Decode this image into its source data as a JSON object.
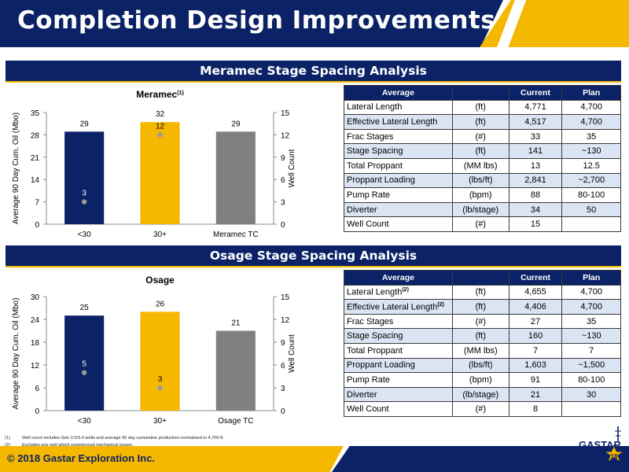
{
  "slide": {
    "title": "Completion Design Improvements",
    "copyright": "© 2018 Gastar Exploration Inc.",
    "logo_text": "GASTAR",
    "page_number": "18",
    "colors": {
      "navy": "#0b2266",
      "gold": "#f5b800",
      "gray": "#808080",
      "table_alt": "#dbe4f3"
    }
  },
  "sections": {
    "meramec_title": "Meramec Stage Spacing Analysis",
    "osage_title": "Osage Stage Spacing Analysis"
  },
  "chart_data": [
    {
      "type": "bar",
      "title": "Meramec",
      "title_sup": "(1)",
      "categories": [
        "<30",
        "30+",
        "Meramec TC"
      ],
      "series": [
        {
          "values": [
            29,
            32,
            29
          ],
          "colors": [
            "#0b2266",
            "#f5b800",
            "#808080"
          ]
        },
        {
          "name": "Well Count",
          "type": "scatter",
          "axis": "right",
          "values": [
            3,
            12,
            null
          ]
        }
      ],
      "ylabel": "Average 90 Day Cum. Oil (Mbo)",
      "y2label": "Well Count",
      "ylim": [
        0,
        35
      ],
      "yticks": [
        0,
        7,
        14,
        21,
        28,
        35
      ],
      "y2lim": [
        0,
        15
      ],
      "y2ticks": [
        0,
        3,
        6,
        9,
        12,
        15
      ],
      "grid": false
    },
    {
      "type": "bar",
      "title": "Osage",
      "title_sup": "",
      "categories": [
        "<30",
        "30+",
        "Osage TC"
      ],
      "series": [
        {
          "values": [
            25,
            26,
            21
          ],
          "colors": [
            "#0b2266",
            "#f5b800",
            "#808080"
          ]
        },
        {
          "name": "Well Count",
          "type": "scatter",
          "axis": "right",
          "values": [
            5,
            3,
            null
          ]
        }
      ],
      "ylabel": "Average 90 Day Cum. Oil (Mbo)",
      "y2label": "Well Count",
      "ylim": [
        0,
        30
      ],
      "yticks": [
        0,
        6,
        12,
        18,
        24,
        30
      ],
      "y2lim": [
        0,
        15
      ],
      "y2ticks": [
        0,
        3,
        6,
        9,
        12,
        15
      ],
      "grid": false
    }
  ],
  "meramec_table": {
    "headers": [
      "Average",
      "",
      "Current",
      "Plan"
    ],
    "rows": [
      {
        "label": "Lateral Length",
        "sup": "",
        "unit": "(ft)",
        "current": "4,771",
        "plan": "4,700"
      },
      {
        "label": "Effective Lateral Length",
        "sup": "",
        "unit": "(ft)",
        "current": "4,517",
        "plan": "4,700"
      },
      {
        "label": "Frac Stages",
        "sup": "",
        "unit": "(#)",
        "current": "33",
        "plan": "35"
      },
      {
        "label": "Stage Spacing",
        "sup": "",
        "unit": "(ft)",
        "current": "141",
        "plan": "~130"
      },
      {
        "label": "Total Proppant",
        "sup": "",
        "unit": "(MM lbs)",
        "current": "13",
        "plan": "12.5"
      },
      {
        "label": "Proppant Loading",
        "sup": "",
        "unit": "(lbs/ft)",
        "current": "2,841",
        "plan": "~2,700"
      },
      {
        "label": "Pump Rate",
        "sup": "",
        "unit": "(bpm)",
        "current": "88",
        "plan": "80-100"
      },
      {
        "label": "Diverter",
        "sup": "",
        "unit": "(lb/stage)",
        "current": "34",
        "plan": "50"
      },
      {
        "label": "Well Count",
        "sup": "",
        "unit": "(#)",
        "current": "15",
        "plan": ""
      }
    ]
  },
  "osage_table": {
    "headers": [
      "Average",
      "",
      "Current",
      "Plan"
    ],
    "rows": [
      {
        "label": "Lateral Length",
        "sup": "(2)",
        "unit": "(ft)",
        "current": "4,655",
        "plan": "4,700"
      },
      {
        "label": "Effective Lateral Length",
        "sup": "(2)",
        "unit": "(ft)",
        "current": "4,406",
        "plan": "4,700"
      },
      {
        "label": "Frac Stages",
        "sup": "",
        "unit": "(#)",
        "current": "27",
        "plan": "35"
      },
      {
        "label": "Stage Spacing",
        "sup": "",
        "unit": "(ft)",
        "current": "160",
        "plan": "~130"
      },
      {
        "label": "Total Proppant",
        "sup": "",
        "unit": "(MM lbs)",
        "current": "7",
        "plan": "7"
      },
      {
        "label": "Proppant Loading",
        "sup": "",
        "unit": "(lbs/ft)",
        "current": "1,603",
        "plan": "~1,500"
      },
      {
        "label": "Pump Rate",
        "sup": "",
        "unit": "(bpm)",
        "current": "91",
        "plan": "80-100"
      },
      {
        "label": "Diverter",
        "sup": "",
        "unit": "(lb/stage)",
        "current": "21",
        "plan": "30"
      },
      {
        "label": "Well Count",
        "sup": "",
        "unit": "(#)",
        "current": "8",
        "plan": ""
      }
    ]
  },
  "footnotes": [
    {
      "num": "(1)",
      "text": "Well count includes Gen 2.5/3.0 wells and average 90 day cumulative production normalized to 4,700 ft."
    },
    {
      "num": "(2)",
      "text": "Excludes one well which experienced mechanical issues."
    }
  ]
}
